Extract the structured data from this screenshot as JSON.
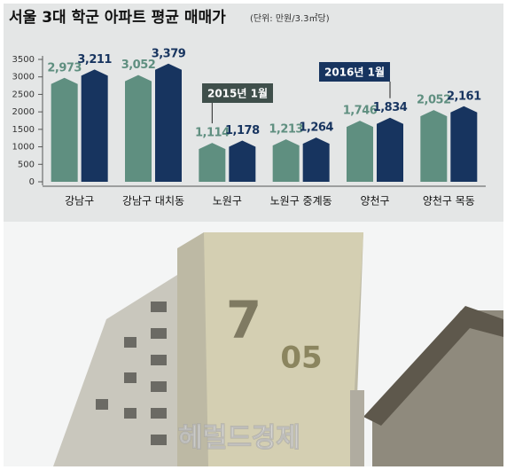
{
  "chart_data": {
    "type": "bar",
    "title": "서울 3대 학군 아파트 평균 매매가",
    "subtitle": "(단위: 만원/3.3㎡당)",
    "categories": [
      "강남구",
      "강남구 대치동",
      "노원구",
      "노원구 중계동",
      "양천구",
      "양천구 목동"
    ],
    "series": [
      {
        "name": "2015년 1월",
        "color": "#5f8f80",
        "values": [
          2973,
          3052,
          1114,
          1213,
          1746,
          2052
        ],
        "value_labels": [
          "2,973",
          "3,052",
          "1,114",
          "1,213",
          "1,746",
          "2,052"
        ]
      },
      {
        "name": "2016년 1월",
        "color": "#17345f",
        "values": [
          3211,
          3379,
          1178,
          1264,
          1834,
          2161
        ],
        "value_labels": [
          "3,211",
          "3,379",
          "1,178",
          "1,264",
          "1,834",
          "2,161"
        ]
      }
    ],
    "ylim": [
      0,
      3500
    ],
    "yticks": [
      0,
      500,
      1000,
      1500,
      2000,
      2500,
      3000,
      3500
    ]
  },
  "photo": {
    "building_sign": [
      "7",
      "05"
    ],
    "watermark": "헤럴드경제"
  }
}
